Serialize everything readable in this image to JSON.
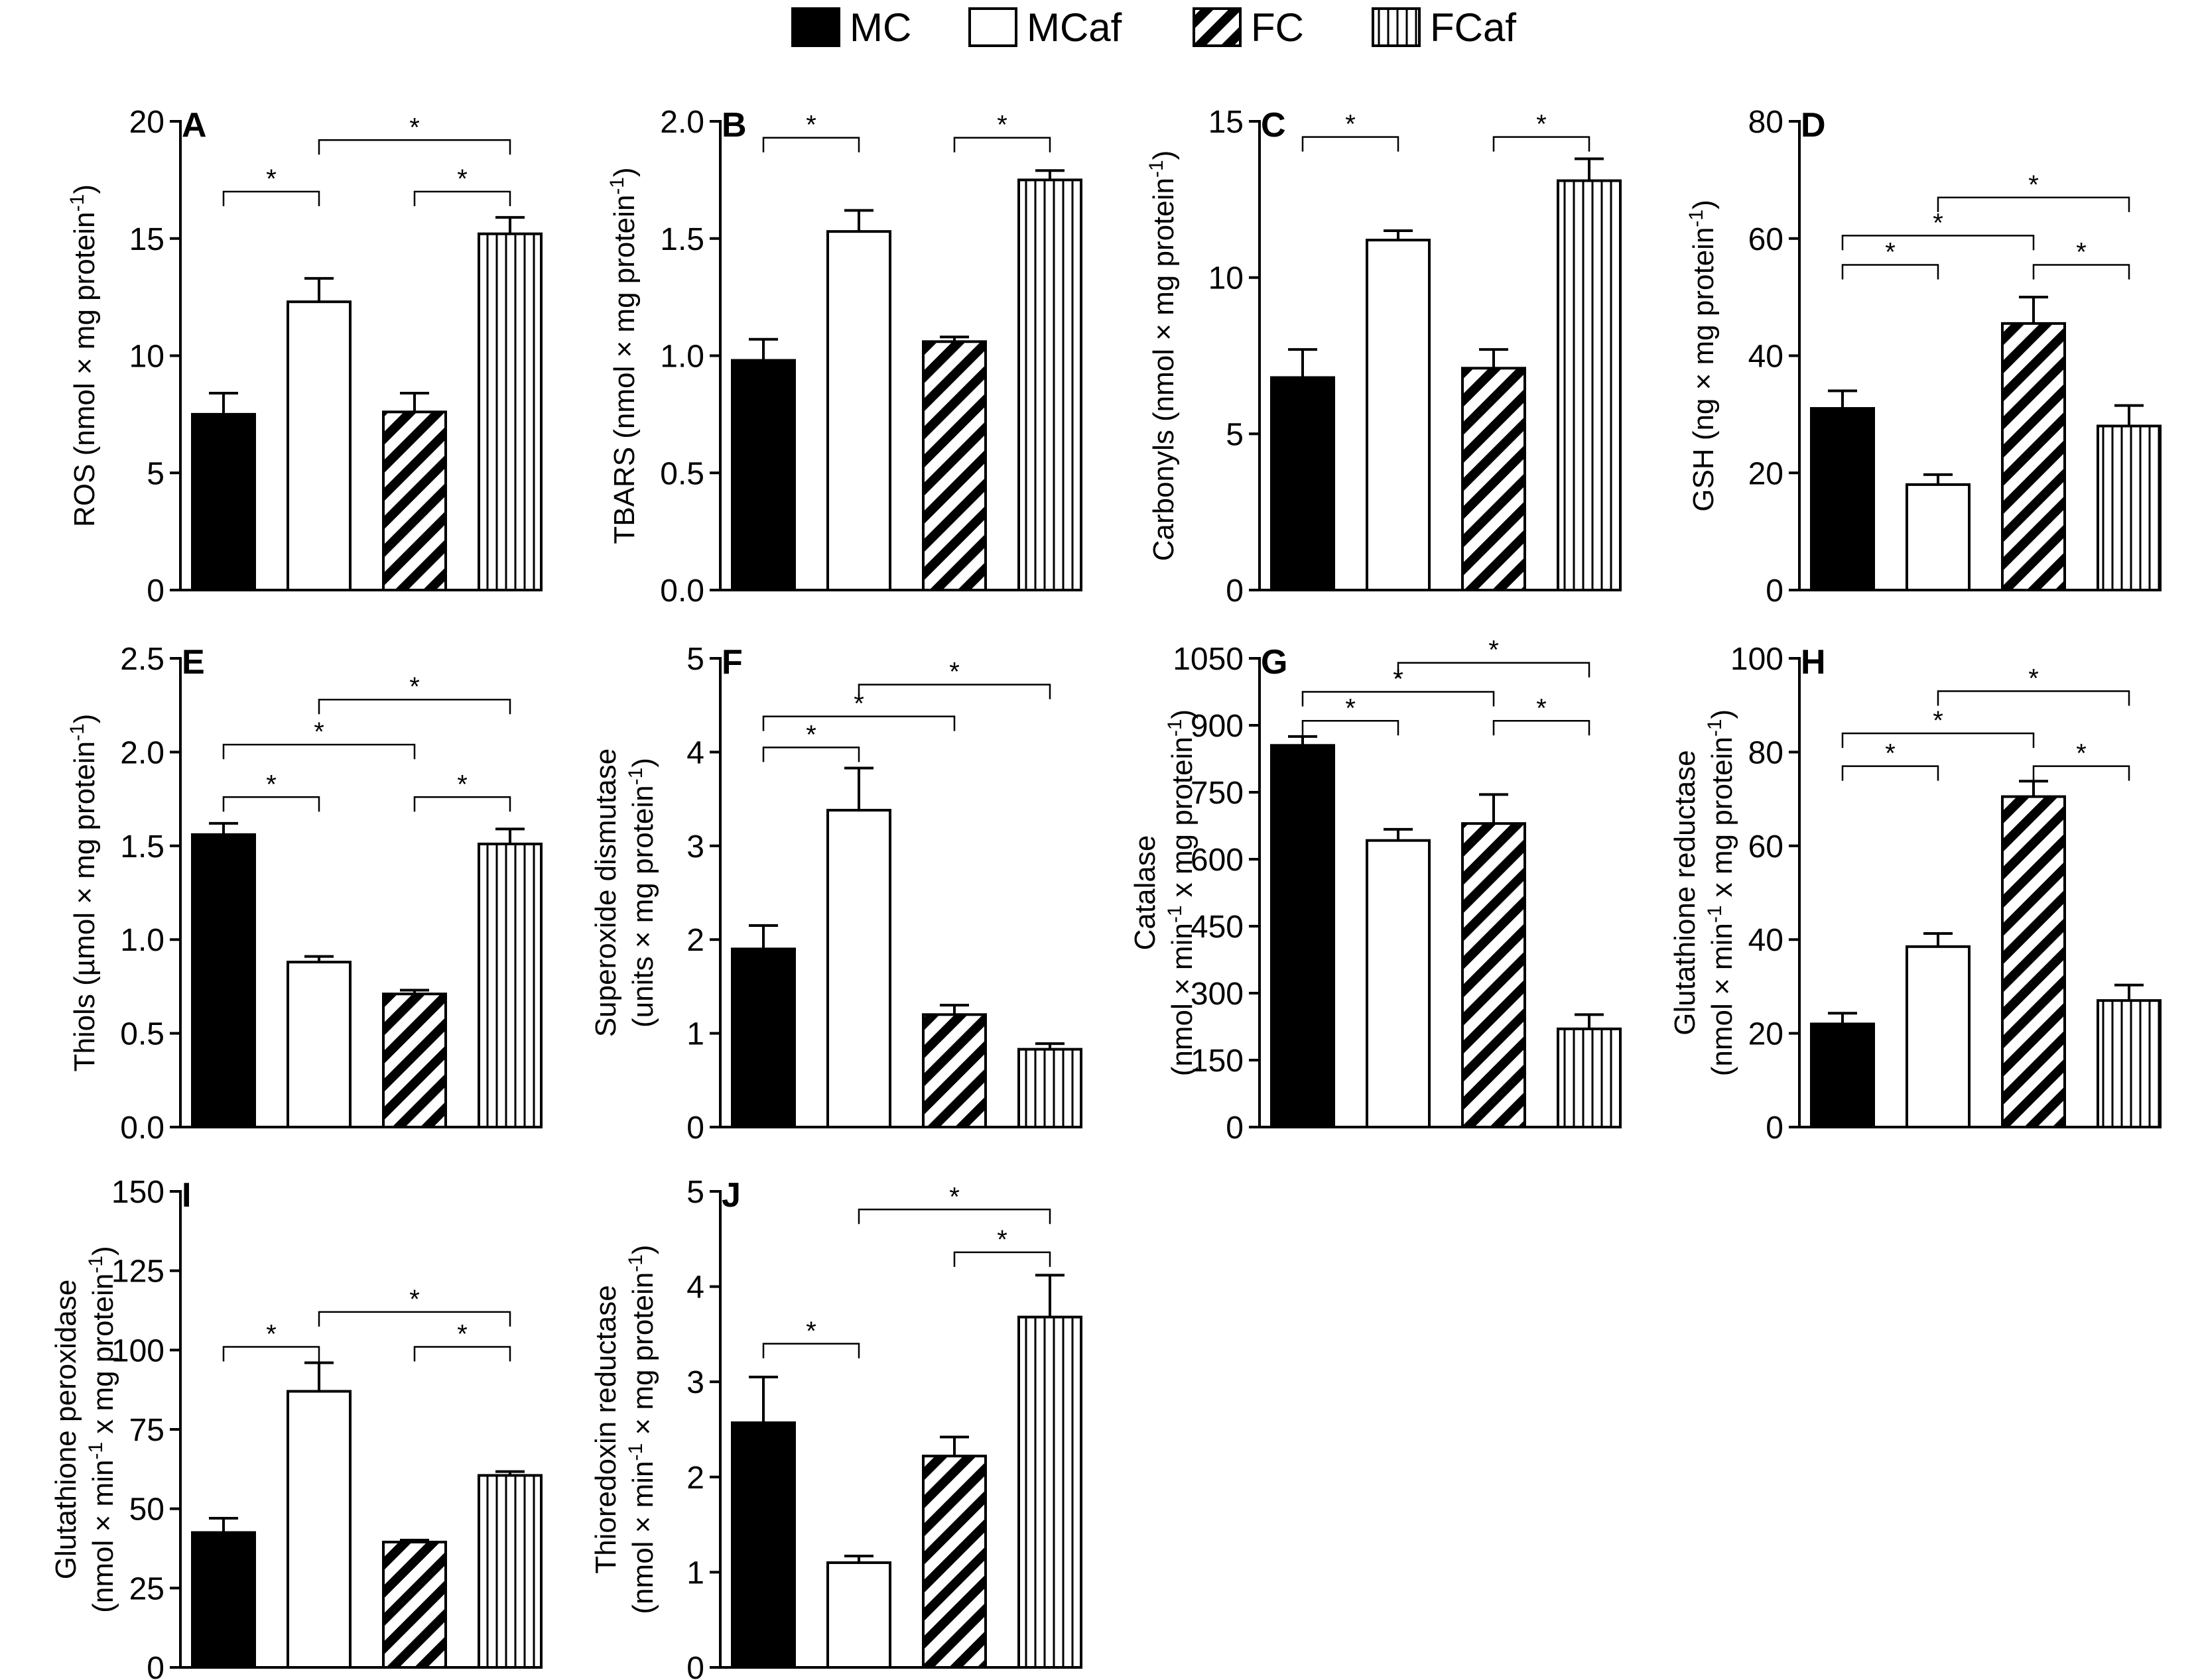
{
  "legend": [
    {
      "key": "MC",
      "label": "MC",
      "pattern": "solid"
    },
    {
      "key": "MCaf",
      "label": "MCaf",
      "pattern": "open"
    },
    {
      "key": "FC",
      "label": "FC",
      "pattern": "diagonal"
    },
    {
      "key": "FCaf",
      "label": "FCaf",
      "pattern": "vertical"
    }
  ],
  "colors": {
    "ink": "#000000",
    "paper": "#ffffff"
  },
  "chart_data": [
    {
      "type": "bar",
      "panel": "A",
      "ylabel": "ROS (nmol × mg protein",
      "ylabel_sup": "-1",
      "ylabel_end": ")",
      "categories": [
        "MC",
        "MCaf",
        "FC",
        "FCaf"
      ],
      "values": [
        7.5,
        12.3,
        7.6,
        15.2
      ],
      "errors": [
        0.9,
        1.0,
        0.8,
        0.7
      ],
      "ylim": [
        0,
        20
      ],
      "yticks": [
        "0",
        "5",
        "10",
        "15",
        "20"
      ],
      "significance": [
        {
          "from": 0,
          "to": 1,
          "y": 17.0
        },
        {
          "from": 2,
          "to": 3,
          "y": 17.0
        },
        {
          "from": 1,
          "to": 3,
          "y": 19.2
        }
      ]
    },
    {
      "type": "bar",
      "panel": "B",
      "ylabel": "TBARS (nmol × mg protein",
      "ylabel_sup": "-1",
      "ylabel_end": ")",
      "categories": [
        "MC",
        "MCaf",
        "FC",
        "FCaf"
      ],
      "values": [
        0.98,
        1.53,
        1.06,
        1.75
      ],
      "errors": [
        0.09,
        0.09,
        0.02,
        0.04
      ],
      "ylim": [
        0,
        2
      ],
      "yticks": [
        "0.0",
        "0.5",
        "1.0",
        "1.5",
        "2.0"
      ],
      "significance": [
        {
          "from": 0,
          "to": 1,
          "y": 1.93
        },
        {
          "from": 2,
          "to": 3,
          "y": 1.93
        }
      ]
    },
    {
      "type": "bar",
      "panel": "C",
      "ylabel": "Carbonyls (nmol × mg protein",
      "ylabel_sup": "-1",
      "ylabel_end": ")",
      "categories": [
        "MC",
        "MCaf",
        "FC",
        "FCaf"
      ],
      "values": [
        6.8,
        11.2,
        7.1,
        13.1
      ],
      "errors": [
        0.9,
        0.3,
        0.6,
        0.7
      ],
      "ylim": [
        0,
        15
      ],
      "yticks": [
        "0",
        "5",
        "10",
        "15"
      ],
      "significance": [
        {
          "from": 0,
          "to": 1,
          "y": 14.5
        },
        {
          "from": 2,
          "to": 3,
          "y": 14.5
        }
      ]
    },
    {
      "type": "bar",
      "panel": "D",
      "ylabel": "GSH (ng × mg protein",
      "ylabel_sup": "-1",
      "ylabel_end": ")",
      "categories": [
        "MC",
        "MCaf",
        "FC",
        "FCaf"
      ],
      "values": [
        31.0,
        18.0,
        45.5,
        28.0
      ],
      "errors": [
        3.0,
        1.7,
        4.5,
        3.5
      ],
      "ylim": [
        0,
        80
      ],
      "yticks": [
        "0",
        "20",
        "40",
        "60",
        "80"
      ],
      "significance": [
        {
          "from": 0,
          "to": 1,
          "y": 55.5
        },
        {
          "from": 2,
          "to": 3,
          "y": 55.5
        },
        {
          "from": 0,
          "to": 2,
          "y": 60.5
        },
        {
          "from": 1,
          "to": 3,
          "y": 67.0
        }
      ]
    },
    {
      "type": "bar",
      "panel": "E",
      "ylabel": "Thiols (µmol × mg protein",
      "ylabel_sup": "-1",
      "ylabel_end": ")",
      "categories": [
        "MC",
        "MCaf",
        "FC",
        "FCaf"
      ],
      "values": [
        1.56,
        0.88,
        0.71,
        1.51
      ],
      "errors": [
        0.06,
        0.03,
        0.02,
        0.08
      ],
      "ylim": [
        0,
        2.5
      ],
      "yticks": [
        "0.0",
        "0.5",
        "1.0",
        "1.5",
        "2.0",
        "2.5"
      ],
      "significance": [
        {
          "from": 0,
          "to": 1,
          "y": 1.76
        },
        {
          "from": 2,
          "to": 3,
          "y": 1.76
        },
        {
          "from": 0,
          "to": 2,
          "y": 2.04
        },
        {
          "from": 1,
          "to": 3,
          "y": 2.28
        }
      ]
    },
    {
      "type": "bar",
      "panel": "F",
      "ylabel": "Superoxide dismutase",
      "ylabel2": "(units × mg protein",
      "ylabel_sup": "-1",
      "ylabel_end": ")",
      "categories": [
        "MC",
        "MCaf",
        "FC",
        "FCaf"
      ],
      "values": [
        1.9,
        3.38,
        1.2,
        0.83
      ],
      "errors": [
        0.25,
        0.45,
        0.1,
        0.06
      ],
      "ylim": [
        0,
        5
      ],
      "yticks": [
        "0",
        "1",
        "2",
        "3",
        "4",
        "5"
      ],
      "significance": [
        {
          "from": 0,
          "to": 1,
          "y": 4.05
        },
        {
          "from": 0,
          "to": 2,
          "y": 4.38
        },
        {
          "from": 1,
          "to": 3,
          "y": 4.72
        }
      ]
    },
    {
      "type": "bar",
      "panel": "G",
      "ylabel": "Catalase",
      "ylabel2": "(nmol × min",
      "ylabel_sup": "-1",
      "ylabel_end": " x mg protein",
      "ylabel_sup2": "-1",
      "ylabel_end2": ")",
      "categories": [
        "MC",
        "MCaf",
        "FC",
        "FCaf"
      ],
      "values": [
        855,
        642,
        680,
        220
      ],
      "errors": [
        20,
        25,
        65,
        32
      ],
      "ylim": [
        0,
        1050
      ],
      "yticks": [
        "0",
        "150",
        "300",
        "450",
        "600",
        "750",
        "900",
        "1050"
      ],
      "significance": [
        {
          "from": 0,
          "to": 1,
          "y": 910
        },
        {
          "from": 2,
          "to": 3,
          "y": 910
        },
        {
          "from": 0,
          "to": 2,
          "y": 975
        },
        {
          "from": 1,
          "to": 3,
          "y": 1040
        }
      ]
    },
    {
      "type": "bar",
      "panel": "H",
      "ylabel": "Glutathione reductase",
      "ylabel2": "(nmol × min",
      "ylabel_sup": "-1",
      "ylabel_end": " x mg protein",
      "ylabel_sup2": "-1",
      "ylabel_end2": ")",
      "categories": [
        "MC",
        "MCaf",
        "FC",
        "FCaf"
      ],
      "values": [
        22,
        38.5,
        70.5,
        27
      ],
      "errors": [
        2.3,
        2.8,
        3.3,
        3.3
      ],
      "ylim": [
        0,
        100
      ],
      "yticks": [
        "0",
        "20",
        "40",
        "60",
        "80",
        "100"
      ],
      "significance": [
        {
          "from": 0,
          "to": 1,
          "y": 77
        },
        {
          "from": 2,
          "to": 3,
          "y": 77
        },
        {
          "from": 0,
          "to": 2,
          "y": 84
        },
        {
          "from": 1,
          "to": 3,
          "y": 93
        }
      ]
    },
    {
      "type": "bar",
      "panel": "I",
      "ylabel": "Glutathione peroxidase",
      "ylabel2": "(nmol × min",
      "ylabel_sup": "-1",
      "ylabel_end": " x mg protein",
      "ylabel_sup2": "-1",
      "ylabel_end2": ")",
      "categories": [
        "MC",
        "MCaf",
        "FC",
        "FCaf"
      ],
      "values": [
        42.5,
        87,
        39.5,
        60.5
      ],
      "errors": [
        4.5,
        9,
        0.6,
        1.2
      ],
      "ylim": [
        0,
        150
      ],
      "yticks": [
        "0",
        "25",
        "50",
        "75",
        "100",
        "125",
        "150"
      ],
      "significance": [
        {
          "from": 0,
          "to": 1,
          "y": 101
        },
        {
          "from": 2,
          "to": 3,
          "y": 101
        },
        {
          "from": 1,
          "to": 3,
          "y": 112
        }
      ]
    },
    {
      "type": "bar",
      "panel": "J",
      "ylabel": "Thioredoxin reductase",
      "ylabel2": "(nmol × min",
      "ylabel_sup": "-1",
      "ylabel_end": " × mg protein",
      "ylabel_sup2": "-1",
      "ylabel_end2": ")",
      "categories": [
        "MC",
        "MCaf",
        "FC",
        "FCaf"
      ],
      "values": [
        2.57,
        1.1,
        2.22,
        3.68
      ],
      "errors": [
        0.48,
        0.07,
        0.2,
        0.44
      ],
      "ylim": [
        0,
        5
      ],
      "yticks": [
        "0",
        "1",
        "2",
        "3",
        "4",
        "5"
      ],
      "significance": [
        {
          "from": 0,
          "to": 1,
          "y": 3.4
        },
        {
          "from": 2,
          "to": 3,
          "y": 4.36
        },
        {
          "from": 1,
          "to": 3,
          "y": 4.81
        }
      ]
    }
  ],
  "significance_mark": "*"
}
